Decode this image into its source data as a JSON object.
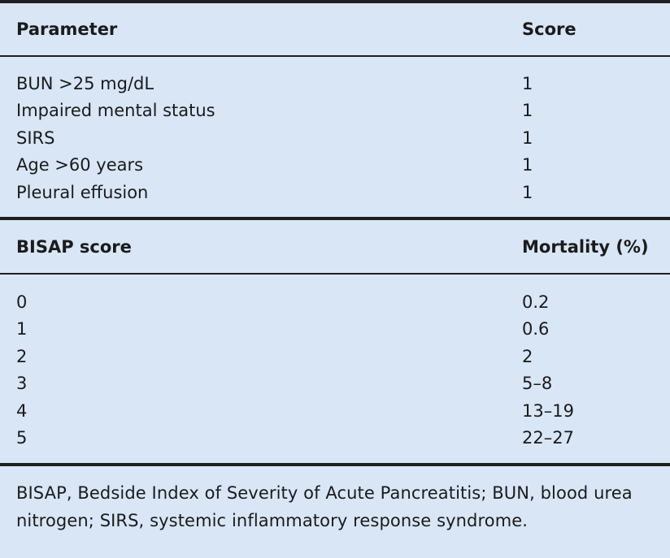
{
  "table": {
    "section1": {
      "header": {
        "col1": "Parameter",
        "col2": "Score"
      },
      "rows": [
        {
          "col1": "BUN >25 mg/dL",
          "col2": "1"
        },
        {
          "col1": "Impaired mental status",
          "col2": "1"
        },
        {
          "col1": "SIRS",
          "col2": "1"
        },
        {
          "col1": "Age >60 years",
          "col2": "1"
        },
        {
          "col1": "Pleural effusion",
          "col2": "1"
        }
      ]
    },
    "section2": {
      "header": {
        "col1": "BISAP score",
        "col2": "Mortality (%)"
      },
      "rows": [
        {
          "col1": "0",
          "col2": "0.2"
        },
        {
          "col1": "1",
          "col2": "0.6"
        },
        {
          "col1": "2",
          "col2": "2"
        },
        {
          "col1": "3",
          "col2": "5–8"
        },
        {
          "col1": "4",
          "col2": "13–19"
        },
        {
          "col1": "5",
          "col2": "22–27"
        }
      ]
    },
    "footnote": "BISAP, Bedside Index of Severity of Acute Pancreatitis; BUN, blood urea nitrogen; SIRS, systemic inflammatory response syndrome."
  }
}
